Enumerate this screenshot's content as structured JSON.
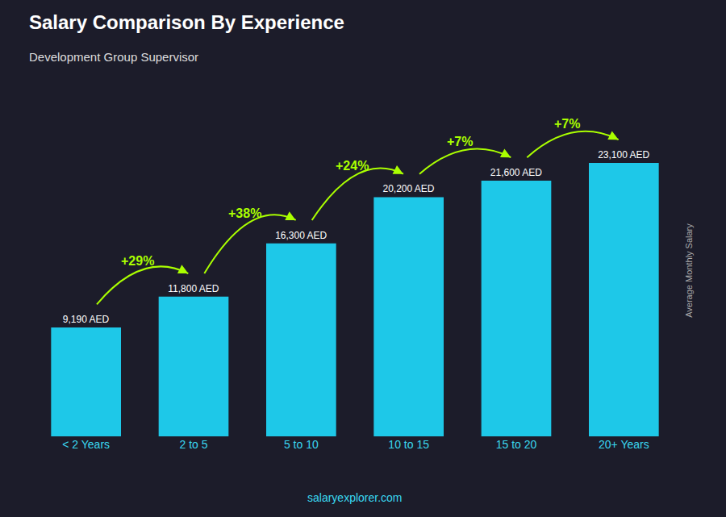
{
  "chart_data": {
    "type": "bar",
    "title": "Salary Comparison By Experience",
    "subtitle": "Development Group Supervisor",
    "ylabel": "Average Monthly Salary",
    "categories": [
      "< 2 Years",
      "2 to 5",
      "5 to 10",
      "10 to 15",
      "15 to 20",
      "20+ Years"
    ],
    "values": [
      9190,
      11800,
      16300,
      20200,
      21600,
      23100
    ],
    "value_labels": [
      "9,190 AED",
      "11,800 AED",
      "16,300 AED",
      "20,200 AED",
      "21,600 AED",
      "23,100 AED"
    ],
    "data_labels": true,
    "color": "#1ec8e8",
    "ylim": [
      0,
      28000
    ],
    "tick_labels": "x",
    "grid": false,
    "annotations": [
      "+29%",
      "+38%",
      "+24%",
      "+7%",
      "+7%"
    ],
    "watermark": "salaryexplorer.com"
  }
}
